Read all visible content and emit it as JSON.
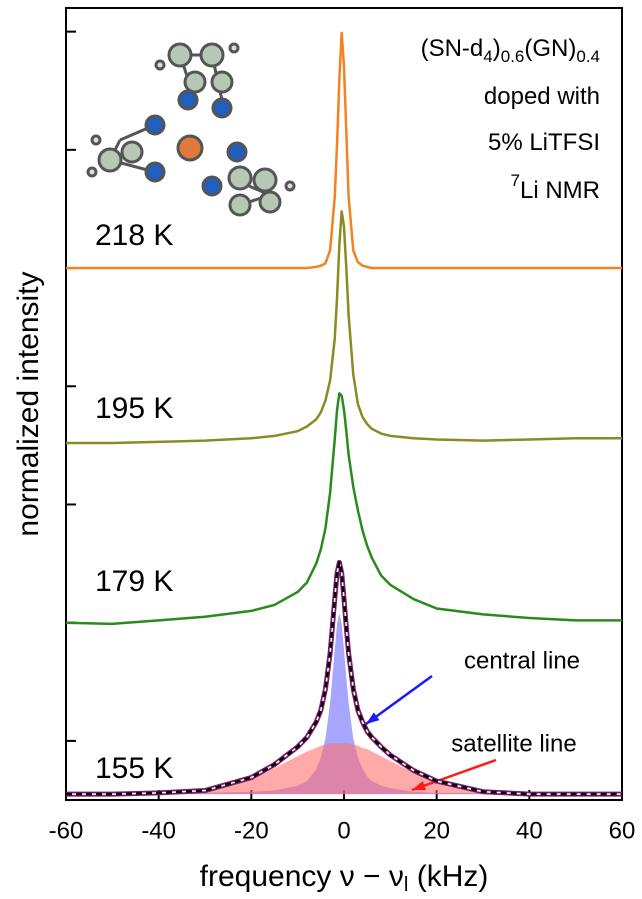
{
  "chart_data": {
    "type": "line",
    "title": [
      [
        {
          "t": "(SN-d"
        },
        {
          "sub": "4"
        },
        {
          "t": ")"
        },
        {
          "sub": "0.6"
        },
        {
          "t": "(GN)"
        },
        {
          "sub": "0.4"
        }
      ],
      [
        {
          "t": "doped with"
        }
      ],
      [
        {
          "t": "5% LiTFSI"
        }
      ],
      [
        {
          "sup": "7"
        },
        {
          "t": "Li NMR"
        }
      ]
    ],
    "xlabel": [
      {
        "t": "frequency ν − ν"
      },
      {
        "sub": "l"
      },
      {
        "t": "  (kHz)"
      }
    ],
    "ylabel": "normalized intensity",
    "x": [
      -60,
      -50,
      -40,
      -30,
      -20,
      -15,
      -10,
      -8,
      -6,
      -5,
      -4,
      -3,
      -2,
      -1.5,
      -1,
      -0.5,
      0,
      0.5,
      1,
      2,
      3,
      4,
      5,
      6,
      8,
      10,
      15,
      20,
      30,
      40,
      50,
      60
    ],
    "series": [
      {
        "name": "central line",
        "color": "#6b6bff",
        "fill": true,
        "values": [
          -0.45,
          -0.45,
          -0.45,
          -0.44,
          -0.43,
          -0.42,
          -0.38,
          -0.34,
          -0.24,
          -0.14,
          0.02,
          0.32,
          0.77,
          0.99,
          1.08,
          0.99,
          0.77,
          0.53,
          0.32,
          0.02,
          -0.14,
          -0.24,
          -0.3,
          -0.34,
          -0.38,
          -0.4,
          -0.43,
          -0.44,
          -0.44,
          -0.45,
          -0.45,
          -0.45
        ]
      },
      {
        "name": "satellite line",
        "color": "#ff6f6f",
        "fill": true,
        "values": [
          -0.45,
          -0.45,
          -0.45,
          -0.43,
          -0.33,
          -0.23,
          -0.13,
          -0.09,
          -0.06,
          -0.04,
          -0.03,
          -0.02,
          -0.02,
          -0.02,
          -0.02,
          -0.02,
          -0.02,
          -0.02,
          -0.02,
          -0.03,
          -0.04,
          -0.06,
          -0.07,
          -0.09,
          -0.13,
          -0.17,
          -0.27,
          -0.36,
          -0.43,
          -0.45,
          -0.45,
          -0.45
        ]
      },
      {
        "color": "#7a1a6a",
        "fit": true,
        "values": [
          -0.45,
          -0.45,
          -0.44,
          -0.42,
          -0.31,
          -0.2,
          -0.05,
          0.03,
          0.16,
          0.26,
          0.44,
          0.74,
          1.2,
          1.42,
          1.51,
          1.42,
          1.2,
          0.96,
          0.74,
          0.44,
          0.26,
          0.16,
          0.08,
          0.03,
          -0.05,
          -0.12,
          -0.25,
          -0.34,
          -0.43,
          -0.45,
          -0.45,
          -0.45
        ]
      },
      {
        "name": "155 K",
        "color": "#000000",
        "dash": true,
        "values": [
          -0.45,
          -0.45,
          -0.44,
          -0.42,
          -0.31,
          -0.2,
          -0.05,
          0.03,
          0.16,
          0.26,
          0.44,
          0.74,
          1.2,
          1.42,
          1.51,
          1.42,
          1.2,
          0.96,
          0.74,
          0.44,
          0.26,
          0.16,
          0.08,
          0.03,
          -0.05,
          -0.12,
          -0.25,
          -0.34,
          -0.43,
          -0.45,
          -0.45,
          -0.45
        ]
      },
      {
        "name": "179 K",
        "color": "#2a8a1e",
        "values": [
          1.0,
          0.99,
          1.02,
          1.05,
          1.1,
          1.15,
          1.26,
          1.34,
          1.5,
          1.62,
          1.8,
          2.1,
          2.55,
          2.8,
          2.94,
          2.92,
          2.8,
          2.62,
          2.42,
          2.15,
          1.95,
          1.78,
          1.65,
          1.55,
          1.4,
          1.32,
          1.2,
          1.12,
          1.07,
          1.04,
          1.02,
          1.02
        ]
      },
      {
        "name": "195 K",
        "color": "#8b8b22",
        "values": [
          2.52,
          2.52,
          2.53,
          2.54,
          2.56,
          2.58,
          2.62,
          2.66,
          2.72,
          2.78,
          2.88,
          3.05,
          3.4,
          3.75,
          4.2,
          4.48,
          4.35,
          4.0,
          3.6,
          3.1,
          2.85,
          2.74,
          2.68,
          2.64,
          2.6,
          2.58,
          2.56,
          2.55,
          2.54,
          2.55,
          2.56,
          2.56
        ]
      },
      {
        "name": "218 K",
        "color": "#f58220",
        "values": [
          4.0,
          4.0,
          4.0,
          4.0,
          4.0,
          4.0,
          4.0,
          4.0,
          4.01,
          4.02,
          4.04,
          4.15,
          4.6,
          5.05,
          5.6,
          5.99,
          5.7,
          5.15,
          4.6,
          4.15,
          4.05,
          4.02,
          4.01,
          4.0,
          4.0,
          4.0,
          4.0,
          4.0,
          4.0,
          4.0,
          4.0,
          4.0
        ]
      }
    ],
    "xlim": [
      -60,
      60
    ],
    "xticks": [
      -60,
      -40,
      -20,
      0,
      20,
      40,
      60
    ],
    "ylim": [
      -0.5,
      6.2
    ],
    "yticks": [
      0,
      1,
      2,
      3,
      4,
      5,
      6
    ]
  }
}
